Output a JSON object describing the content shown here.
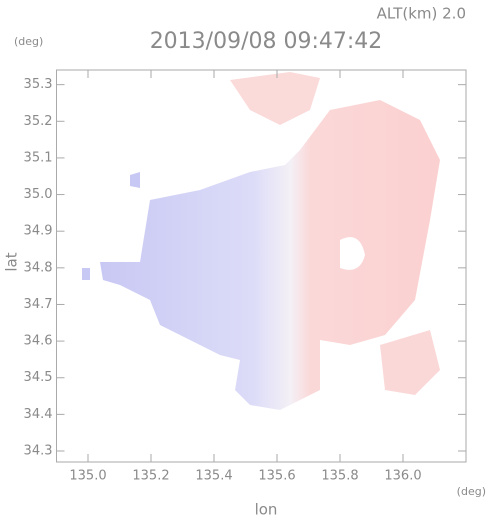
{
  "chart_data": {
    "type": "radar-field",
    "title": "2013/09/08 09:47:42",
    "annotation": "ALT(km) 2.0",
    "x_label": "lon",
    "y_label": "lat",
    "x_unit": "(deg)",
    "y_unit": "(deg)",
    "xlim": [
      134.9,
      136.2
    ],
    "ylim": [
      34.27,
      35.34
    ],
    "xticks": [
      {
        "value": 135,
        "label": "135.0"
      },
      135.2,
      135.4,
      135.6,
      135.8,
      {
        "value": 136,
        "label": "136.0"
      }
    ],
    "yticks": [
      35.3,
      35.2,
      35.1,
      {
        "value": 35,
        "label": "35.0"
      },
      34.9,
      34.8,
      34.7,
      34.6,
      34.5,
      34.4,
      34.3
    ]
  }
}
